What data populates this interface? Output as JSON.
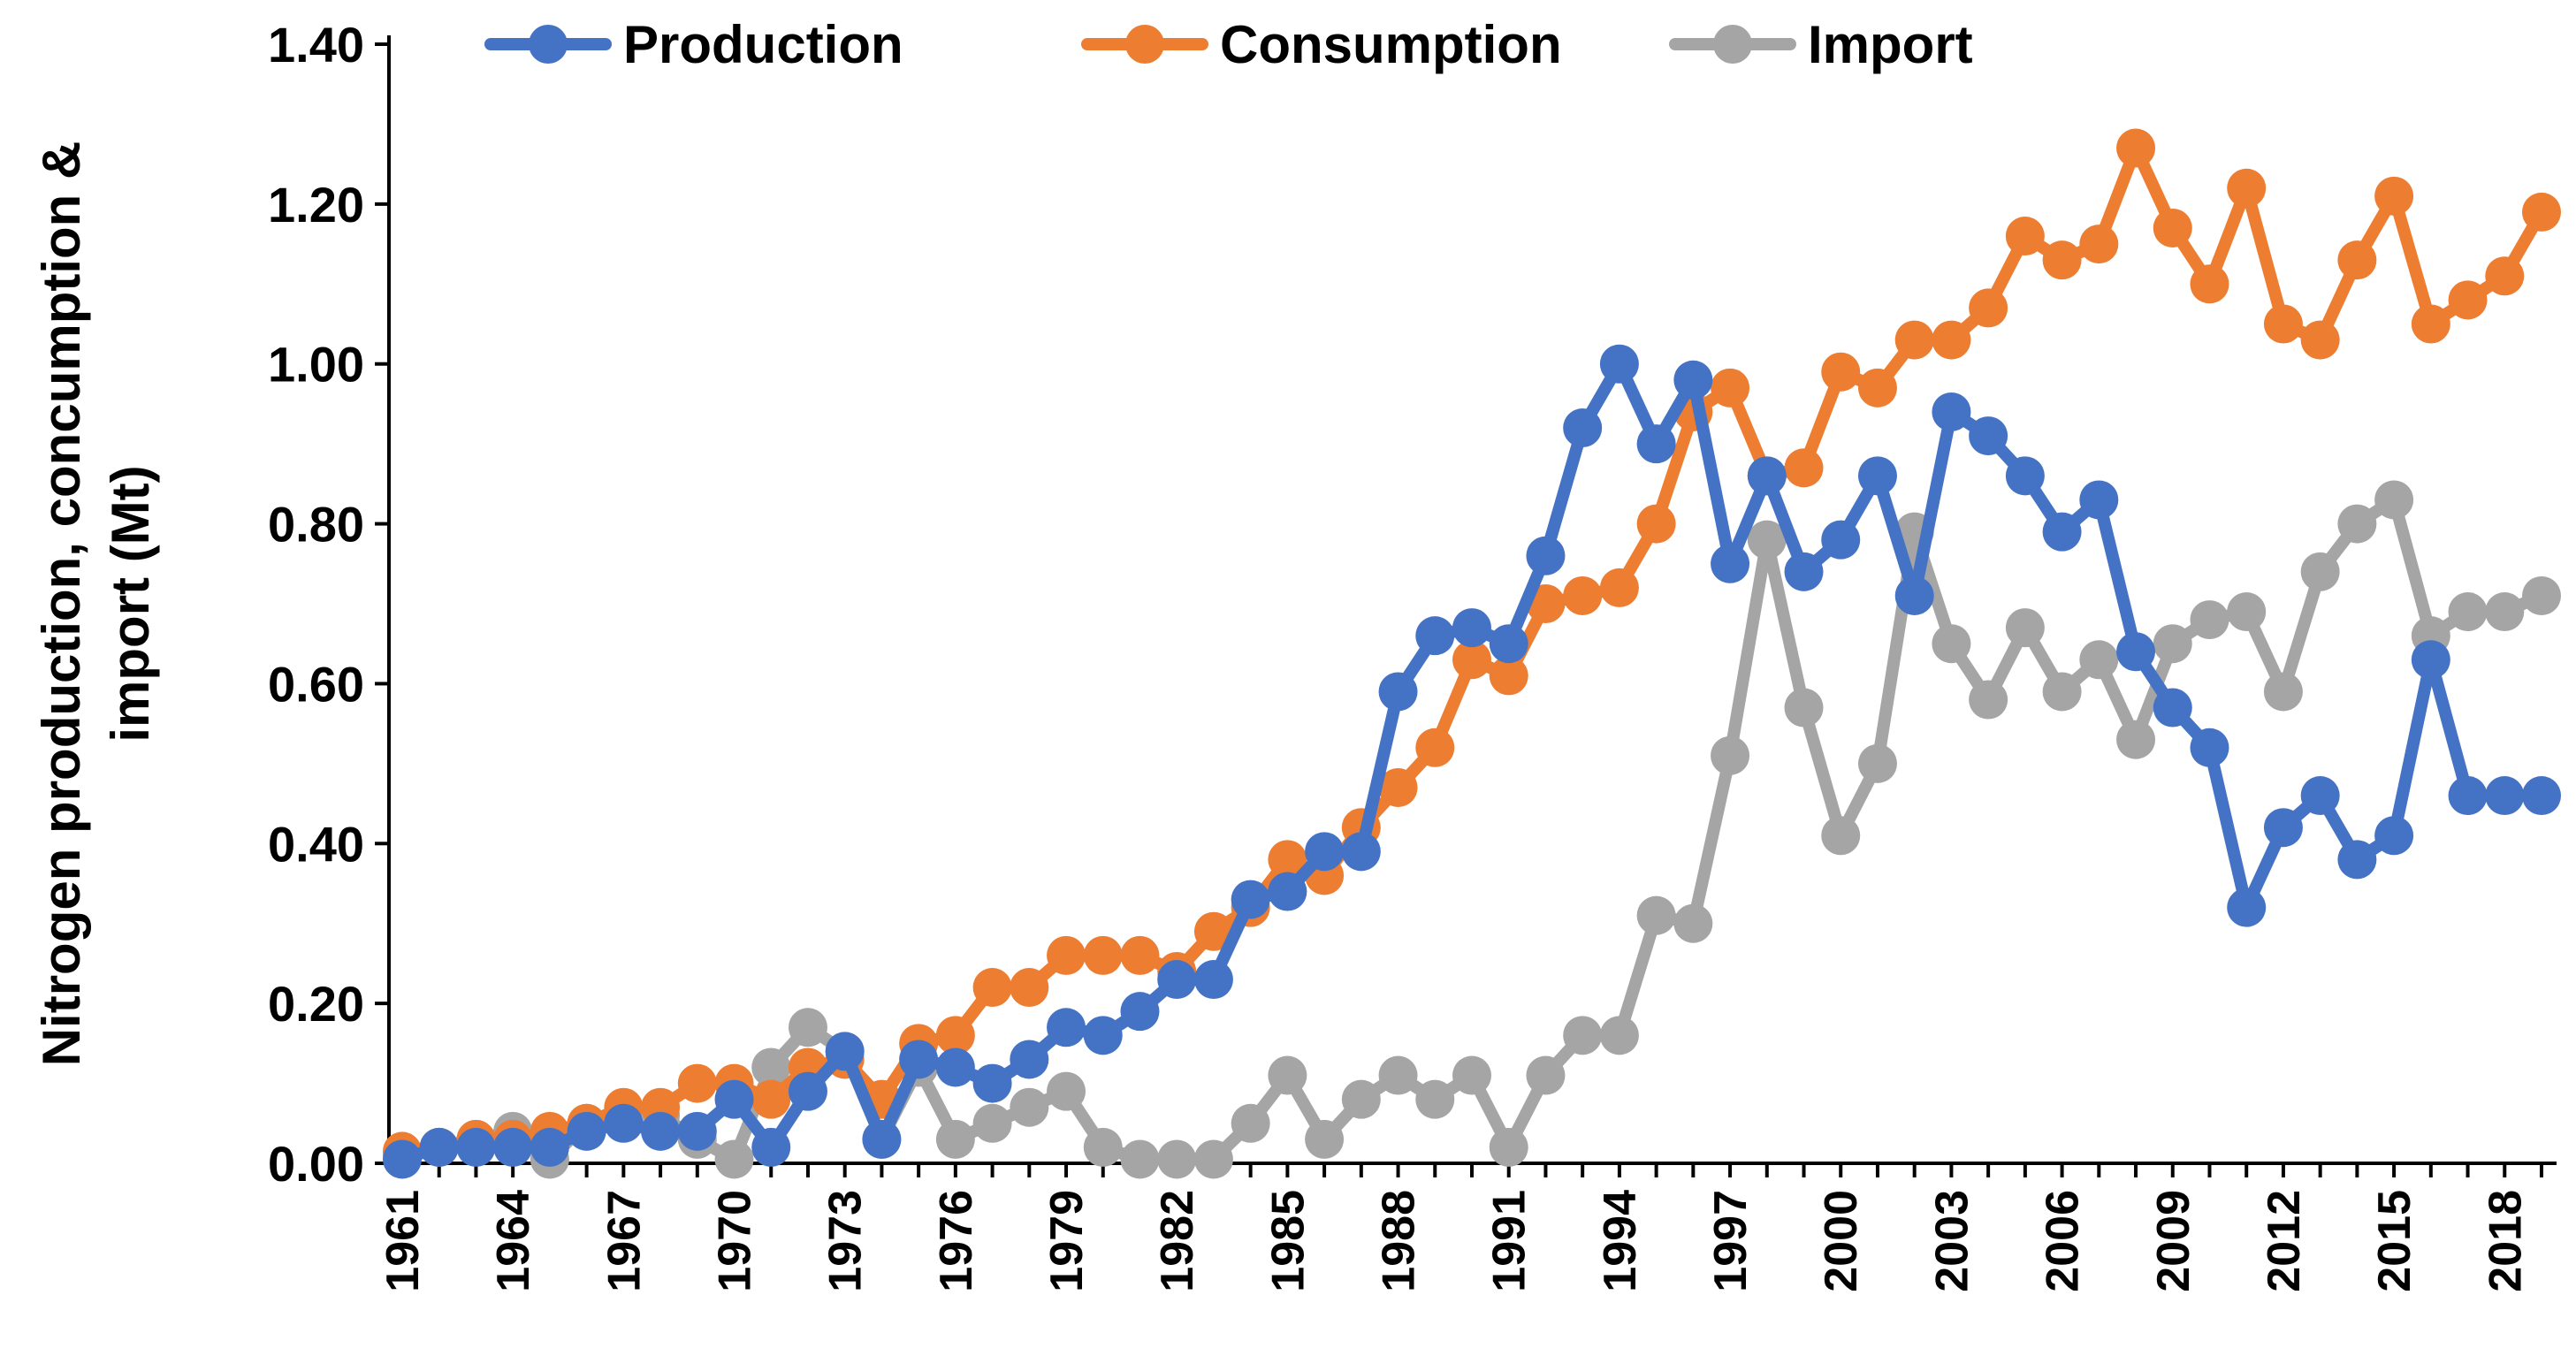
{
  "chart_data": {
    "type": "line",
    "title": "",
    "xlabel": "",
    "ylabel": "Nitrogen production, concumption & import (Mt)",
    "ylabel_lines": [
      "Nitrogen production, concumption &",
      "import (Mt)"
    ],
    "ylim": [
      0,
      1.4
    ],
    "y_ticks": [
      "0.00",
      "0.20",
      "0.40",
      "0.60",
      "0.80",
      "1.00",
      "1.20",
      "1.40"
    ],
    "x_tick_labels": [
      "1961",
      "1964",
      "1967",
      "1970",
      "1973",
      "1976",
      "1979",
      "1982",
      "1985",
      "1988",
      "1991",
      "1994",
      "1997",
      "2000",
      "2003",
      "2006",
      "2009",
      "2012",
      "2015",
      "2018"
    ],
    "x": [
      1961,
      1962,
      1963,
      1964,
      1965,
      1966,
      1967,
      1968,
      1969,
      1970,
      1971,
      1972,
      1973,
      1974,
      1975,
      1976,
      1977,
      1978,
      1979,
      1980,
      1981,
      1982,
      1983,
      1984,
      1985,
      1986,
      1987,
      1988,
      1989,
      1990,
      1991,
      1992,
      1993,
      1994,
      1995,
      1996,
      1997,
      1998,
      1999,
      2000,
      2001,
      2002,
      2003,
      2004,
      2005,
      2006,
      2007,
      2008,
      2009,
      2010,
      2011,
      2012,
      2013,
      2014,
      2015,
      2016,
      2017,
      2018,
      2019
    ],
    "legend_position": "top",
    "grid": false,
    "series": [
      {
        "name": "Production",
        "color": "#4472C4",
        "values": [
          0.005,
          0.02,
          0.02,
          0.02,
          0.02,
          0.04,
          0.05,
          0.04,
          0.04,
          0.08,
          0.02,
          0.09,
          0.14,
          0.03,
          0.13,
          0.12,
          0.1,
          0.13,
          0.17,
          0.16,
          0.19,
          0.23,
          0.23,
          0.33,
          0.34,
          0.39,
          0.39,
          0.59,
          0.66,
          0.67,
          0.65,
          0.76,
          0.92,
          1.0,
          0.9,
          0.98,
          0.75,
          0.86,
          0.74,
          0.78,
          0.86,
          0.71,
          0.94,
          0.91,
          0.86,
          0.79,
          0.83,
          0.64,
          0.57,
          0.52,
          0.32,
          0.42,
          0.46,
          0.38,
          0.41,
          0.63,
          0.46,
          0.46,
          0.46
        ]
      },
      {
        "name": "Consumption",
        "color": "#ED7D31",
        "values": [
          0.015,
          0.02,
          0.03,
          0.03,
          0.04,
          0.05,
          0.07,
          0.07,
          0.1,
          0.1,
          0.08,
          0.12,
          0.13,
          0.08,
          0.15,
          0.16,
          0.22,
          0.22,
          0.26,
          0.26,
          0.26,
          0.24,
          0.29,
          0.32,
          0.38,
          0.36,
          0.42,
          0.47,
          0.52,
          0.63,
          0.61,
          0.7,
          0.71,
          0.72,
          0.8,
          0.94,
          0.97,
          0.86,
          0.87,
          0.99,
          0.97,
          1.03,
          1.03,
          1.07,
          1.16,
          1.13,
          1.15,
          1.27,
          1.17,
          1.1,
          1.22,
          1.05,
          1.03,
          1.13,
          1.21,
          1.05,
          1.08,
          1.11,
          1.19
        ]
      },
      {
        "name": "Import",
        "color": "#A5A5A5",
        "values": [
          0.01,
          0.02,
          0.03,
          0.04,
          0.005,
          0.05,
          0.06,
          0.06,
          0.03,
          0.005,
          0.12,
          0.17,
          0.14,
          0.03,
          0.12,
          0.03,
          0.05,
          0.07,
          0.09,
          0.02,
          0.005,
          0.005,
          0.005,
          0.05,
          0.11,
          0.03,
          0.08,
          0.11,
          0.08,
          0.11,
          0.02,
          0.11,
          0.16,
          0.16,
          0.31,
          0.3,
          0.51,
          0.78,
          0.57,
          0.41,
          0.5,
          0.79,
          0.65,
          0.58,
          0.67,
          0.59,
          0.63,
          0.53,
          0.65,
          0.68,
          0.69,
          0.59,
          0.74,
          0.8,
          0.83,
          0.66,
          0.69,
          0.69,
          0.71
        ]
      }
    ]
  }
}
